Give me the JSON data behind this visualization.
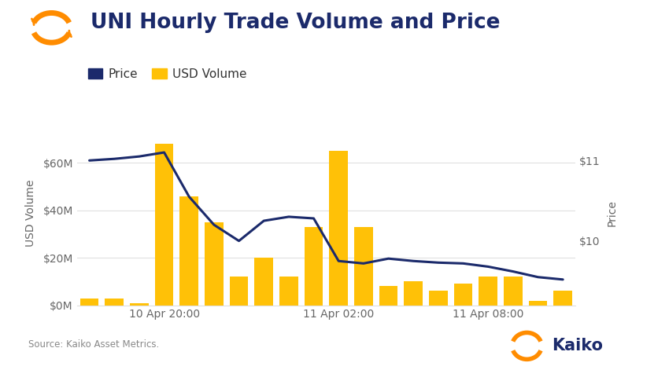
{
  "title": "UNI Hourly Trade Volume and Price",
  "ylabel_left": "USD Volume",
  "ylabel_right": "Price",
  "bar_color": "#FFC107",
  "line_color": "#1B2A6B",
  "background_color": "#ffffff",
  "grid_color": "#e0e0e0",
  "volume_data": [
    3000000,
    3000000,
    1000000,
    68000000,
    46000000,
    35000000,
    12000000,
    20000000,
    12000000,
    33000000,
    65000000,
    33000000,
    8000000,
    10000000,
    6000000,
    9000000,
    12000000,
    12000000,
    2000000,
    6000000
  ],
  "price_data": [
    11.0,
    11.02,
    11.05,
    11.1,
    10.55,
    10.2,
    10.0,
    10.25,
    10.3,
    10.28,
    9.75,
    9.72,
    9.78,
    9.75,
    9.73,
    9.72,
    9.68,
    9.62,
    9.55,
    9.52
  ],
  "ylim_left": [
    0,
    78000000
  ],
  "ylim_right": [
    9.2,
    11.5
  ],
  "yticks_left": [
    0,
    20000000,
    40000000,
    60000000
  ],
  "ytick_labels_left": [
    "$0M",
    "$20M",
    "$40M",
    "$60M"
  ],
  "yticks_right": [
    10.0,
    11.0
  ],
  "ytick_labels_right": [
    "$10",
    "$11"
  ],
  "x_tick_positions": [
    3,
    10,
    16
  ],
  "x_tick_labels": [
    "10 Apr 20:00",
    "11 Apr 02:00",
    "11 Apr 08:00"
  ],
  "source_text": "Source: Kaiko Asset Metrics.",
  "legend_price_label": "Price",
  "legend_volume_label": "USD Volume",
  "title_fontsize": 19,
  "label_fontsize": 10,
  "tick_fontsize": 10
}
